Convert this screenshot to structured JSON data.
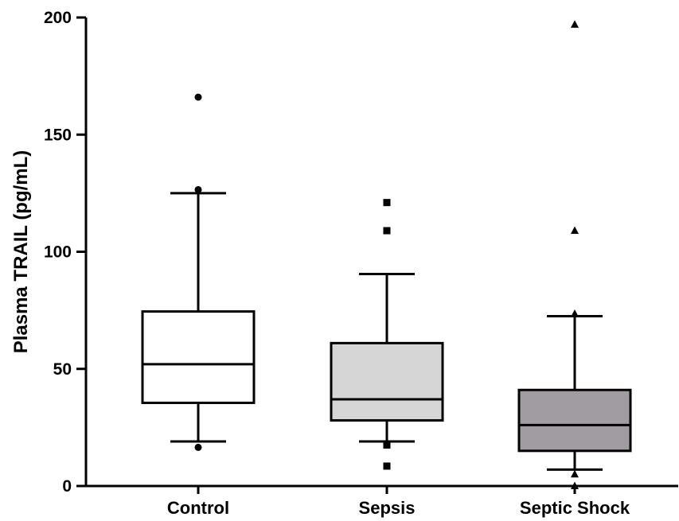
{
  "chart_data": {
    "type": "box",
    "title": "",
    "xlabel": "",
    "ylabel": "Plasma TRAIL (pg/mL)",
    "ylim": [
      0,
      200
    ],
    "yticks": [
      0,
      50,
      100,
      150,
      200
    ],
    "grid": false,
    "categories": [
      "Control",
      "Sepsis",
      "Septic Shock"
    ],
    "series": [
      {
        "category": "Control",
        "whisker_low": 19,
        "q1": 35.5,
        "median": 52,
        "q3": 74.5,
        "whisker_high": 125,
        "outliers": [
          16.5,
          126.5,
          166
        ],
        "marker": "circle",
        "fill": "#ffffff"
      },
      {
        "category": "Sepsis",
        "whisker_low": 19,
        "q1": 28,
        "median": 37,
        "q3": 61,
        "whisker_high": 90.5,
        "outliers": [
          8.5,
          17.5,
          109,
          121
        ],
        "marker": "square",
        "fill": "#d6d6d6"
      },
      {
        "category": "Septic Shock",
        "whisker_low": 7,
        "q1": 15,
        "median": 26,
        "q3": 41,
        "whisker_high": 72.5,
        "outliers": [
          0,
          5,
          73.5,
          109,
          197
        ],
        "marker": "triangle",
        "fill": "#a09ca2"
      }
    ]
  }
}
